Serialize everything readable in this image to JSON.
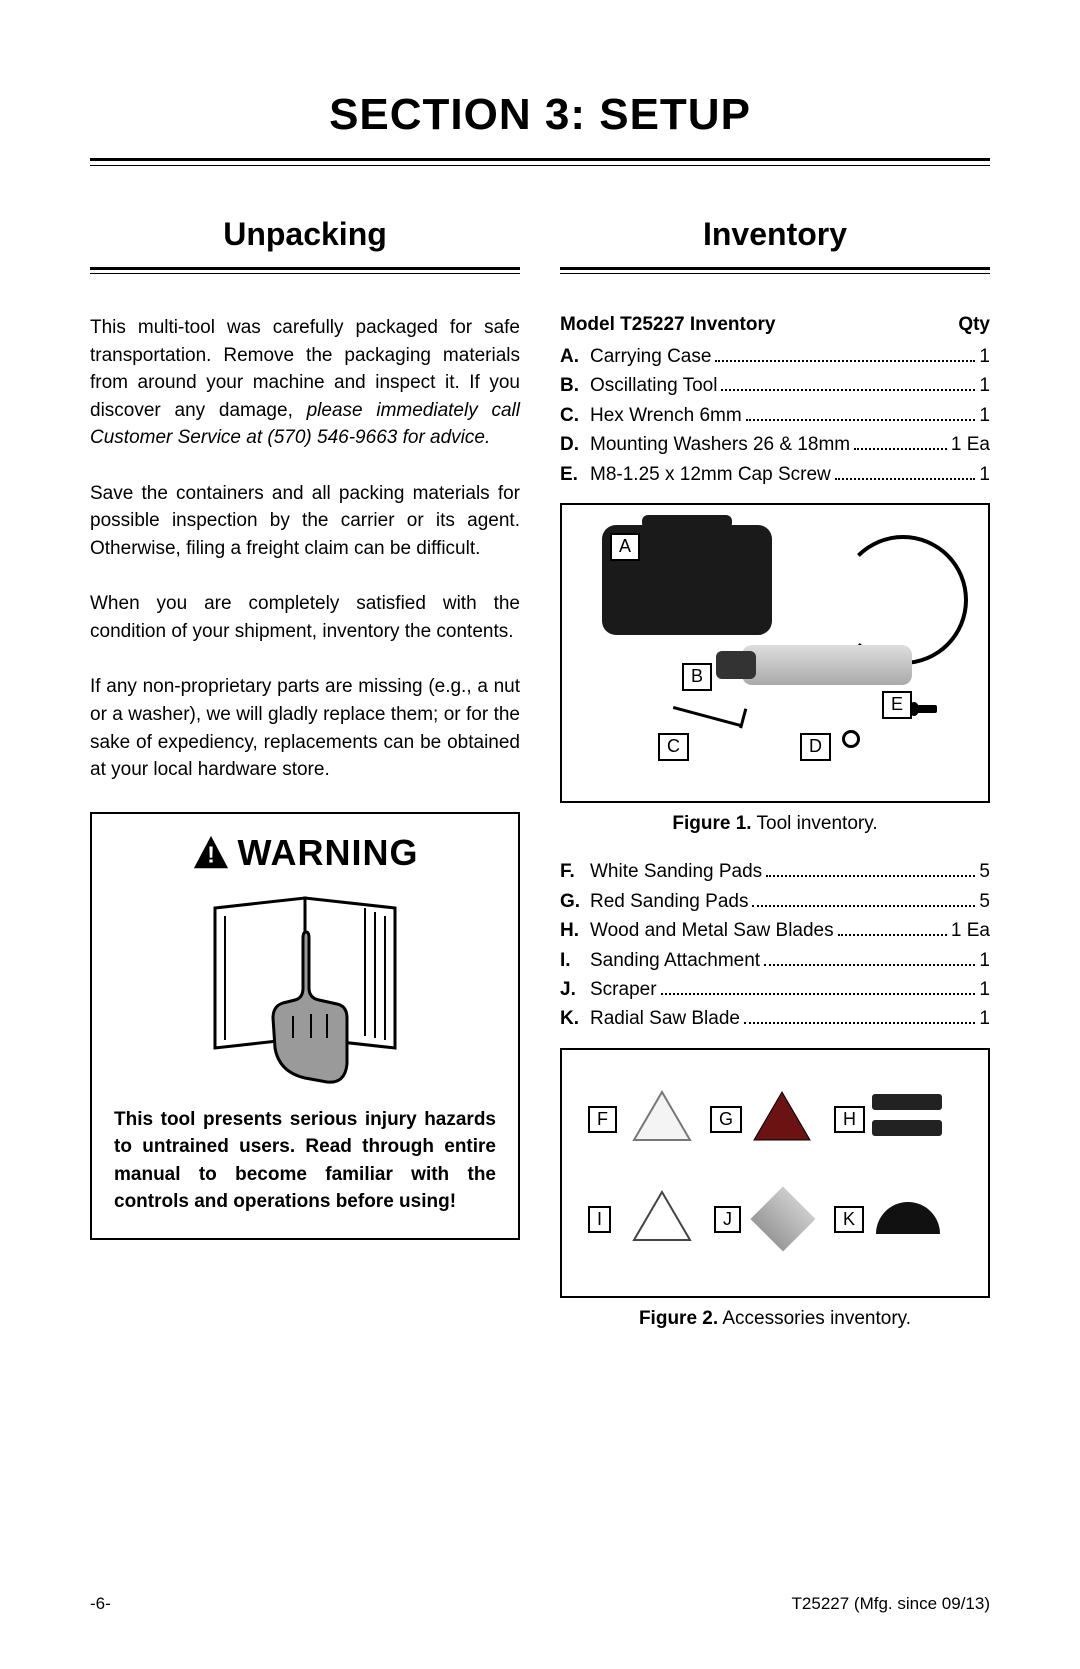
{
  "page_title": "SECTION 3: SETUP",
  "left": {
    "heading": "Unpacking",
    "para1a": "This multi-tool was carefully packaged for safe transportation. Remove the packaging materials from around your machine and inspect it. If you discover any damage, ",
    "para1b_italic": "please immediately call Customer Service at (570) 546-9663 for advice.",
    "para2": "Save the containers and all packing materials for possible inspection by the carrier or its agent. Otherwise, filing a freight claim can be difficult.",
    "para3": "When you are completely satisfied with the condition of your shipment, inventory the contents.",
    "para4": "If any non-proprietary parts are missing (e.g., a nut or a washer), we will gladly replace them; or for the sake of expediency, replacements can be obtained at your local hardware store.",
    "warning_label": "WARNING",
    "warning_text": "This tool presents serious injury hazards to untrained users. Read through entire manual to become familiar with the controls and operations before using!"
  },
  "right": {
    "heading": "Inventory",
    "header_left": "Model T25227 Inventory",
    "header_right": "Qty",
    "list1": [
      {
        "key": "A",
        "name": "Carrying Case",
        "qty": "1"
      },
      {
        "key": "B",
        "name": "Oscillating Tool",
        "qty": "1"
      },
      {
        "key": "C",
        "name": "Hex Wrench 6mm",
        "qty": "1"
      },
      {
        "key": "D",
        "name": "Mounting Washers 26 & 18mm",
        "qty": "1 Ea"
      },
      {
        "key": "E",
        "name": "M8-1.25 x 12mm Cap Screw",
        "qty": "1"
      }
    ],
    "fig1_callouts": [
      "A",
      "B",
      "C",
      "D",
      "E"
    ],
    "fig1_caption_b": "Figure 1.",
    "fig1_caption": " Tool inventory.",
    "list2": [
      {
        "key": "F",
        "name": "White Sanding Pads",
        "qty": "5"
      },
      {
        "key": "G",
        "name": "Red Sanding Pads",
        "qty": "5"
      },
      {
        "key": "H",
        "name": "Wood and Metal Saw Blades",
        "qty": "1 Ea"
      },
      {
        "key": "I",
        "name": "Sanding Attachment",
        "qty": "1"
      },
      {
        "key": "J",
        "name": "Scraper",
        "qty": "1"
      },
      {
        "key": "K",
        "name": "Radial Saw Blade",
        "qty": "1"
      }
    ],
    "fig2_callouts": [
      "F",
      "G",
      "H",
      "I",
      "J",
      "K"
    ],
    "fig2_caption_b": "Figure 2.",
    "fig2_caption": " Accessories inventory."
  },
  "footer": {
    "left": "-6-",
    "right": "T25227 (Mfg. since 09/13)"
  },
  "colors": {
    "text": "#000000",
    "bg": "#ffffff",
    "hand_fill": "#9a9a9a",
    "case_fill": "#1a1a1a",
    "red_pad": "#8a1f1f"
  }
}
